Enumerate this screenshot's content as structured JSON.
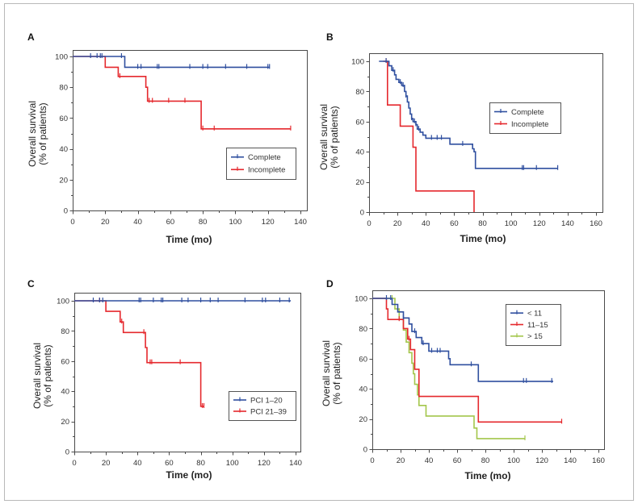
{
  "chart_data": [
    {
      "type": "line",
      "panel": "A",
      "xlabel": "Time (mo)",
      "ylabel": [
        "Overall survival",
        "(% of patients)"
      ],
      "xlim": [
        0,
        140
      ],
      "ylim": [
        0,
        100
      ],
      "xticks": [
        0,
        20,
        40,
        60,
        80,
        100,
        120,
        140
      ],
      "yticks": [
        0,
        20,
        40,
        60,
        80,
        100
      ],
      "grid": false,
      "legend_position": "lower-right",
      "series": [
        {
          "name": "Complete",
          "color": "#2f4f9f",
          "steps": [
            [
              0,
              100
            ],
            [
              32,
              93
            ],
            [
              121,
              93
            ]
          ],
          "censored": [
            11,
            15,
            17,
            18,
            30,
            40,
            42,
            52,
            53,
            72,
            80,
            83,
            94,
            107,
            120,
            121
          ]
        },
        {
          "name": "Incomplete",
          "color": "#e5282d",
          "steps": [
            [
              0,
              100
            ],
            [
              20,
              93
            ],
            [
              28,
              87
            ],
            [
              45,
              80
            ],
            [
              46,
              71
            ],
            [
              79,
              53
            ],
            [
              134,
              53
            ]
          ],
          "censored": [
            29,
            47,
            49,
            59,
            69,
            80,
            87,
            134
          ]
        }
      ]
    },
    {
      "type": "line",
      "panel": "B",
      "xlabel": "Time (mo)",
      "ylabel": [
        "Overall survival",
        "(% of patients)"
      ],
      "xlim": [
        0,
        160
      ],
      "ylim": [
        0,
        100
      ],
      "xticks": [
        0,
        20,
        40,
        60,
        80,
        100,
        120,
        140,
        160
      ],
      "yticks": [
        0,
        20,
        40,
        60,
        80,
        100
      ],
      "grid": false,
      "legend_position": "upper-right",
      "series": [
        {
          "name": "Complete",
          "color": "#2f4f9f",
          "steps": [
            [
              7,
              100
            ],
            [
              14,
              97
            ],
            [
              16,
              94
            ],
            [
              18,
              91
            ],
            [
              19,
              88
            ],
            [
              21,
              86
            ],
            [
              23,
              84
            ],
            [
              25,
              80
            ],
            [
              26,
              77
            ],
            [
              27,
              73
            ],
            [
              28,
              69
            ],
            [
              29,
              65
            ],
            [
              30,
              62
            ],
            [
              31,
              60
            ],
            [
              33,
              58
            ],
            [
              34,
              55
            ],
            [
              36,
              53
            ],
            [
              38,
              51
            ],
            [
              40,
              49
            ],
            [
              57,
              45
            ],
            [
              73,
              42
            ],
            [
              74,
              40
            ],
            [
              75,
              29
            ],
            [
              133,
              29
            ]
          ],
          "censored": [
            12,
            17,
            22,
            24,
            26,
            30,
            32,
            33,
            35,
            44,
            48,
            51,
            66,
            108,
            109,
            118,
            133
          ]
        },
        {
          "name": "Incomplete",
          "color": "#e5282d",
          "steps": [
            [
              10,
              100
            ],
            [
              13,
              71
            ],
            [
              22,
              57
            ],
            [
              31,
              43
            ],
            [
              33,
              14
            ],
            [
              74,
              0
            ]
          ],
          "censored": [
            12
          ]
        }
      ]
    },
    {
      "type": "line",
      "panel": "C",
      "xlabel": "Time (mo)",
      "ylabel": [
        "Overall survival",
        "(% of patients)"
      ],
      "xlim": [
        0,
        140
      ],
      "ylim": [
        0,
        100
      ],
      "xticks": [
        0,
        20,
        40,
        60,
        80,
        100,
        120,
        140
      ],
      "yticks": [
        0,
        20,
        40,
        60,
        80,
        100
      ],
      "grid": false,
      "legend_position": "lower-right",
      "series": [
        {
          "name": "PCI 1–20",
          "color": "#2f4f9f",
          "steps": [
            [
              0,
              100
            ],
            [
              137,
              100
            ]
          ],
          "censored": [
            12,
            16,
            18,
            41,
            42,
            50,
            55,
            56,
            68,
            72,
            80,
            86,
            91,
            108,
            119,
            121,
            130,
            136
          ]
        },
        {
          "name": "PCI 21–39",
          "color": "#e5282d",
          "steps": [
            [
              0,
              100
            ],
            [
              20,
              93
            ],
            [
              29,
              86
            ],
            [
              31,
              79
            ],
            [
              45,
              69
            ],
            [
              46,
              59
            ],
            [
              80,
              30
            ],
            [
              82,
              30
            ]
          ],
          "censored": [
            16,
            30,
            44,
            48,
            49,
            67,
            81,
            82
          ]
        }
      ]
    },
    {
      "type": "line",
      "panel": "D",
      "xlabel": "Time (mo)",
      "ylabel": [
        "Overall survival",
        "(% of patients)"
      ],
      "xlim": [
        0,
        160
      ],
      "ylim": [
        0,
        100
      ],
      "xticks": [
        0,
        20,
        40,
        60,
        80,
        100,
        120,
        140,
        160
      ],
      "yticks": [
        0,
        20,
        40,
        60,
        80,
        100
      ],
      "grid": false,
      "legend_position": "upper-right",
      "series": [
        {
          "name": "< 11",
          "color": "#2f4f9f",
          "steps": [
            [
              0,
              100
            ],
            [
              14,
              96
            ],
            [
              18,
              91
            ],
            [
              22,
              87
            ],
            [
              26,
              83
            ],
            [
              28,
              78
            ],
            [
              31,
              74
            ],
            [
              35,
              70
            ],
            [
              40,
              65
            ],
            [
              54,
              60
            ],
            [
              55,
              56
            ],
            [
              75,
              45
            ],
            [
              128,
              45
            ]
          ],
          "censored": [
            10,
            13,
            22,
            30,
            36,
            42,
            46,
            48,
            70,
            107,
            109,
            127
          ]
        },
        {
          "name": "11–15",
          "color": "#e5282d",
          "steps": [
            [
              0,
              100
            ],
            [
              10,
              93
            ],
            [
              11,
              86
            ],
            [
              22,
              80
            ],
            [
              25,
              73
            ],
            [
              27,
              66
            ],
            [
              30,
              53
            ],
            [
              33,
              35
            ],
            [
              75,
              18
            ],
            [
              134,
              18
            ]
          ],
          "censored": [
            19,
            26,
            134
          ]
        },
        {
          "name": "> 15",
          "color": "#a3c64b",
          "steps": [
            [
              0,
              100
            ],
            [
              16,
              93
            ],
            [
              19,
              86
            ],
            [
              22,
              79
            ],
            [
              24,
              71
            ],
            [
              26,
              64
            ],
            [
              28,
              57
            ],
            [
              29,
              50
            ],
            [
              30,
              43
            ],
            [
              32,
              36
            ],
            [
              33,
              29
            ],
            [
              38,
              22
            ],
            [
              72,
              14
            ],
            [
              74,
              7
            ],
            [
              108,
              7
            ]
          ],
          "censored": [
            14,
            108
          ]
        }
      ]
    }
  ]
}
